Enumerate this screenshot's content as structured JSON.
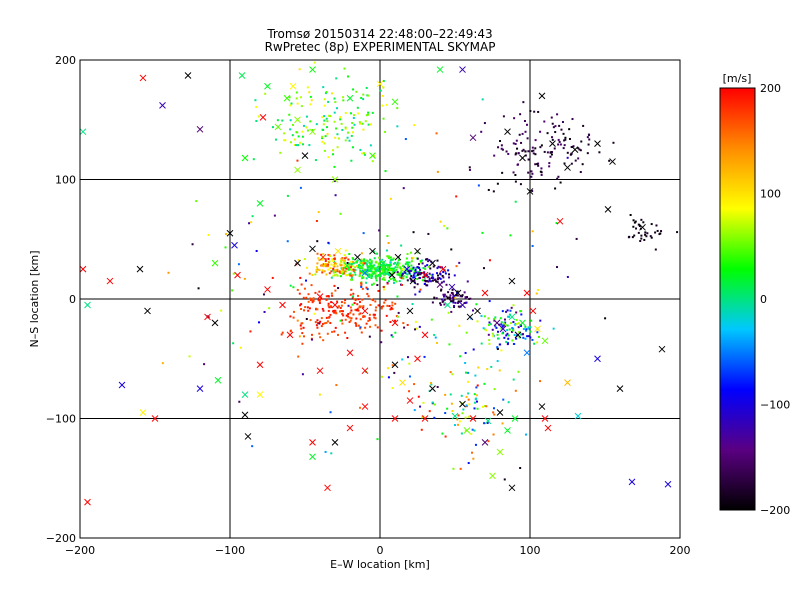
{
  "chart_data": {
    "type": "scatter",
    "title": "Tromsø 20150314 22:48:00–22:49:43",
    "subtitle": "RwPretec (8p) EXPERIMENTAL SKYMAP",
    "xlabel": "E–W location [km]",
    "ylabel": "N–S location [km]",
    "xlim": [
      -200,
      200
    ],
    "ylim": [
      -200,
      200
    ],
    "x_ticks": [
      -200,
      -100,
      0,
      100,
      200
    ],
    "y_ticks": [
      -200,
      -100,
      0,
      100,
      200
    ],
    "x_tick_labels": [
      "−200",
      "−100",
      "0",
      "100",
      "200"
    ],
    "y_tick_labels": [
      "−200",
      "−100",
      "0",
      "100",
      "200"
    ],
    "grid": true,
    "colorbar": {
      "label": "[m/s]",
      "range": [
        -200,
        200
      ],
      "ticks": [
        200,
        100,
        0,
        -100,
        -200
      ],
      "tick_labels": [
        "200",
        "100",
        "0",
        "−100",
        "−200"
      ],
      "colormap": [
        "#000000",
        "#5a0082",
        "#0000ff",
        "#00c8ff",
        "#00ff00",
        "#ffff00",
        "#ff8c00",
        "#ff0000"
      ]
    },
    "markers": {
      "small": "dot",
      "large": "x"
    },
    "points": [
      {
        "x": -158,
        "y": 185,
        "v": 200,
        "m": "x"
      },
      {
        "x": -128,
        "y": 187,
        "v": -200,
        "m": "x"
      },
      {
        "x": -145,
        "y": 162,
        "v": -120,
        "m": "x"
      },
      {
        "x": -120,
        "y": 142,
        "v": -150,
        "m": "x"
      },
      {
        "x": -92,
        "y": 187,
        "v": 10,
        "m": "x"
      },
      {
        "x": -75,
        "y": 178,
        "v": 20,
        "m": "x"
      },
      {
        "x": -62,
        "y": 168,
        "v": 40,
        "m": "x"
      },
      {
        "x": -58,
        "y": 178,
        "v": 90,
        "m": "x"
      },
      {
        "x": -45,
        "y": 192,
        "v": 30,
        "m": "x"
      },
      {
        "x": -55,
        "y": 150,
        "v": 60,
        "m": "x"
      },
      {
        "x": -68,
        "y": 144,
        "v": 50,
        "m": "x"
      },
      {
        "x": -78,
        "y": 152,
        "v": 200,
        "m": "x"
      },
      {
        "x": -90,
        "y": 118,
        "v": 30,
        "m": "x"
      },
      {
        "x": -50,
        "y": 120,
        "v": -200,
        "m": "x"
      },
      {
        "x": -45,
        "y": 140,
        "v": 60,
        "m": "x"
      },
      {
        "x": -20,
        "y": 168,
        "v": 20,
        "m": "x"
      },
      {
        "x": 0,
        "y": 180,
        "v": 90,
        "m": "x"
      },
      {
        "x": 10,
        "y": 165,
        "v": 40,
        "m": "x"
      },
      {
        "x": 40,
        "y": 192,
        "v": 20,
        "m": "x"
      },
      {
        "x": 55,
        "y": 192,
        "v": -120,
        "m": "x"
      },
      {
        "x": -5,
        "y": 120,
        "v": 40,
        "m": "x"
      },
      {
        "x": -30,
        "y": 100,
        "v": 60,
        "m": "x"
      },
      {
        "x": -55,
        "y": 108,
        "v": 60,
        "m": "x"
      },
      {
        "x": -80,
        "y": 80,
        "v": 20,
        "m": "x"
      },
      {
        "x": -198,
        "y": 140,
        "v": 0,
        "m": "x"
      },
      {
        "x": 85,
        "y": 140,
        "v": -200,
        "m": "x"
      },
      {
        "x": 95,
        "y": 118,
        "v": -200,
        "m": "x"
      },
      {
        "x": 115,
        "y": 130,
        "v": -200,
        "m": "x"
      },
      {
        "x": 130,
        "y": 125,
        "v": -200,
        "m": "x"
      },
      {
        "x": 145,
        "y": 130,
        "v": -200,
        "m": "x"
      },
      {
        "x": 125,
        "y": 110,
        "v": -200,
        "m": "x"
      },
      {
        "x": 155,
        "y": 115,
        "v": -200,
        "m": "x"
      },
      {
        "x": 108,
        "y": 170,
        "v": -200,
        "m": "x"
      },
      {
        "x": 100,
        "y": 90,
        "v": -200,
        "m": "x"
      },
      {
        "x": 120,
        "y": 65,
        "v": 200,
        "m": "x"
      },
      {
        "x": 152,
        "y": 75,
        "v": -200,
        "m": "x"
      },
      {
        "x": 175,
        "y": 60,
        "v": -200,
        "m": "x"
      },
      {
        "x": 62,
        "y": 135,
        "v": -150,
        "m": "x"
      },
      {
        "x": -100,
        "y": 55,
        "v": -200,
        "m": "x"
      },
      {
        "x": -110,
        "y": 30,
        "v": 40,
        "m": "x"
      },
      {
        "x": -97,
        "y": 45,
        "v": -100,
        "m": "x"
      },
      {
        "x": -160,
        "y": 25,
        "v": -200,
        "m": "x"
      },
      {
        "x": -180,
        "y": 15,
        "v": 200,
        "m": "x"
      },
      {
        "x": -198,
        "y": 25,
        "v": 200,
        "m": "x"
      },
      {
        "x": -95,
        "y": 20,
        "v": 200,
        "m": "x"
      },
      {
        "x": -55,
        "y": 30,
        "v": -200,
        "m": "x"
      },
      {
        "x": -45,
        "y": 42,
        "v": -200,
        "m": "x"
      },
      {
        "x": -38,
        "y": 35,
        "v": 180,
        "m": "x"
      },
      {
        "x": -28,
        "y": 40,
        "v": 100,
        "m": "x"
      },
      {
        "x": -22,
        "y": 28,
        "v": 20,
        "m": "x"
      },
      {
        "x": -15,
        "y": 35,
        "v": -200,
        "m": "x"
      },
      {
        "x": -10,
        "y": 22,
        "v": -50,
        "m": "x"
      },
      {
        "x": -5,
        "y": 40,
        "v": -200,
        "m": "x"
      },
      {
        "x": 2,
        "y": 30,
        "v": 0,
        "m": "x"
      },
      {
        "x": 8,
        "y": 20,
        "v": -200,
        "m": "x"
      },
      {
        "x": 12,
        "y": 35,
        "v": -200,
        "m": "x"
      },
      {
        "x": 18,
        "y": 25,
        "v": -100,
        "m": "x"
      },
      {
        "x": 22,
        "y": 15,
        "v": -200,
        "m": "x"
      },
      {
        "x": 25,
        "y": 40,
        "v": -200,
        "m": "x"
      },
      {
        "x": 30,
        "y": 20,
        "v": 200,
        "m": "x"
      },
      {
        "x": 35,
        "y": 30,
        "v": -200,
        "m": "x"
      },
      {
        "x": 40,
        "y": 12,
        "v": -150,
        "m": "x"
      },
      {
        "x": 42,
        "y": 25,
        "v": 200,
        "m": "x"
      },
      {
        "x": 48,
        "y": 10,
        "v": -120,
        "m": "x"
      },
      {
        "x": 52,
        "y": 5,
        "v": -200,
        "m": "x"
      },
      {
        "x": 55,
        "y": -5,
        "v": -120,
        "m": "x"
      },
      {
        "x": 45,
        "y": -5,
        "v": 0,
        "m": "x"
      },
      {
        "x": 60,
        "y": -15,
        "v": -200,
        "m": "x"
      },
      {
        "x": 65,
        "y": -10,
        "v": -200,
        "m": "x"
      },
      {
        "x": 70,
        "y": 5,
        "v": 200,
        "m": "x"
      },
      {
        "x": 78,
        "y": -20,
        "v": -150,
        "m": "x"
      },
      {
        "x": 82,
        "y": -25,
        "v": -120,
        "m": "x"
      },
      {
        "x": 88,
        "y": -15,
        "v": 0,
        "m": "x"
      },
      {
        "x": 92,
        "y": -30,
        "v": -200,
        "m": "x"
      },
      {
        "x": 95,
        "y": -20,
        "v": 20,
        "m": "x"
      },
      {
        "x": 98,
        "y": -45,
        "v": -50,
        "m": "x"
      },
      {
        "x": 102,
        "y": -10,
        "v": 200,
        "m": "x"
      },
      {
        "x": 88,
        "y": 15,
        "v": -200,
        "m": "x"
      },
      {
        "x": 98,
        "y": 5,
        "v": 200,
        "m": "x"
      },
      {
        "x": 105,
        "y": -25,
        "v": 100,
        "m": "x"
      },
      {
        "x": 110,
        "y": -35,
        "v": 50,
        "m": "x"
      },
      {
        "x": 145,
        "y": -50,
        "v": -100,
        "m": "x"
      },
      {
        "x": 160,
        "y": -75,
        "v": -200,
        "m": "x"
      },
      {
        "x": 188,
        "y": -42,
        "v": -200,
        "m": "x"
      },
      {
        "x": 125,
        "y": -70,
        "v": 120,
        "m": "x"
      },
      {
        "x": 108,
        "y": -90,
        "v": -200,
        "m": "x"
      },
      {
        "x": 110,
        "y": -100,
        "v": 200,
        "m": "x"
      },
      {
        "x": 132,
        "y": -98,
        "v": -20,
        "m": "x"
      },
      {
        "x": 112,
        "y": -108,
        "v": 200,
        "m": "x"
      },
      {
        "x": 90,
        "y": -100,
        "v": 20,
        "m": "x"
      },
      {
        "x": 80,
        "y": -95,
        "v": -200,
        "m": "x"
      },
      {
        "x": 72,
        "y": -102,
        "v": 0,
        "m": "x"
      },
      {
        "x": 62,
        "y": -100,
        "v": 200,
        "m": "x"
      },
      {
        "x": 55,
        "y": -88,
        "v": -200,
        "m": "x"
      },
      {
        "x": 50,
        "y": -98,
        "v": 0,
        "m": "x"
      },
      {
        "x": 58,
        "y": -110,
        "v": 50,
        "m": "x"
      },
      {
        "x": 80,
        "y": -128,
        "v": 60,
        "m": "x"
      },
      {
        "x": 70,
        "y": -120,
        "v": -150,
        "m": "x"
      },
      {
        "x": 85,
        "y": -110,
        "v": 20,
        "m": "x"
      },
      {
        "x": 75,
        "y": -148,
        "v": 60,
        "m": "x"
      },
      {
        "x": 88,
        "y": -158,
        "v": -200,
        "m": "x"
      },
      {
        "x": 30,
        "y": -100,
        "v": 200,
        "m": "x"
      },
      {
        "x": 10,
        "y": -100,
        "v": 200,
        "m": "x"
      },
      {
        "x": -10,
        "y": -90,
        "v": 200,
        "m": "x"
      },
      {
        "x": -20,
        "y": -108,
        "v": 200,
        "m": "x"
      },
      {
        "x": -30,
        "y": -120,
        "v": -200,
        "m": "x"
      },
      {
        "x": -45,
        "y": -120,
        "v": 200,
        "m": "x"
      },
      {
        "x": -35,
        "y": -158,
        "v": 200,
        "m": "x"
      },
      {
        "x": -45,
        "y": -132,
        "v": 20,
        "m": "x"
      },
      {
        "x": -90,
        "y": -97,
        "v": -200,
        "m": "x"
      },
      {
        "x": -90,
        "y": -80,
        "v": 0,
        "m": "x"
      },
      {
        "x": -80,
        "y": -80,
        "v": 90,
        "m": "x"
      },
      {
        "x": -88,
        "y": -115,
        "v": -200,
        "m": "x"
      },
      {
        "x": -120,
        "y": -75,
        "v": -100,
        "m": "x"
      },
      {
        "x": -108,
        "y": -68,
        "v": 20,
        "m": "x"
      },
      {
        "x": -110,
        "y": -20,
        "v": -200,
        "m": "x"
      },
      {
        "x": -115,
        "y": -15,
        "v": 200,
        "m": "x"
      },
      {
        "x": -155,
        "y": -10,
        "v": -200,
        "m": "x"
      },
      {
        "x": -195,
        "y": -5,
        "v": 0,
        "m": "x"
      },
      {
        "x": -172,
        "y": -72,
        "v": -100,
        "m": "x"
      },
      {
        "x": -158,
        "y": -95,
        "v": 90,
        "m": "x"
      },
      {
        "x": -150,
        "y": -100,
        "v": 200,
        "m": "x"
      },
      {
        "x": -195,
        "y": -170,
        "v": 200,
        "m": "x"
      },
      {
        "x": -10,
        "y": -60,
        "v": 200,
        "m": "x"
      },
      {
        "x": 10,
        "y": -55,
        "v": -200,
        "m": "x"
      },
      {
        "x": 25,
        "y": -50,
        "v": 200,
        "m": "x"
      },
      {
        "x": -20,
        "y": -45,
        "v": 200,
        "m": "x"
      },
      {
        "x": 15,
        "y": -70,
        "v": 100,
        "m": "x"
      },
      {
        "x": 35,
        "y": -75,
        "v": -200,
        "m": "x"
      },
      {
        "x": 20,
        "y": -85,
        "v": 200,
        "m": "x"
      },
      {
        "x": 168,
        "y": -153,
        "v": -100,
        "m": "x"
      },
      {
        "x": 192,
        "y": -155,
        "v": -100,
        "m": "x"
      },
      {
        "x": -40,
        "y": 2,
        "v": 200,
        "m": "x"
      },
      {
        "x": -75,
        "y": 8,
        "v": 200,
        "m": "x"
      },
      {
        "x": -65,
        "y": -5,
        "v": 200,
        "m": "x"
      },
      {
        "x": -30,
        "y": -5,
        "v": 200,
        "m": "x"
      },
      {
        "x": -10,
        "y": -10,
        "v": 200,
        "m": "x"
      },
      {
        "x": 10,
        "y": -20,
        "v": 200,
        "m": "x"
      },
      {
        "x": 20,
        "y": -10,
        "v": -200,
        "m": "x"
      },
      {
        "x": 30,
        "y": -30,
        "v": 200,
        "m": "x"
      },
      {
        "x": -60,
        "y": -30,
        "v": 200,
        "m": "x"
      },
      {
        "x": -80,
        "y": -55,
        "v": 200,
        "m": "x"
      },
      {
        "x": -40,
        "y": -60,
        "v": 200,
        "m": "x"
      }
    ]
  }
}
